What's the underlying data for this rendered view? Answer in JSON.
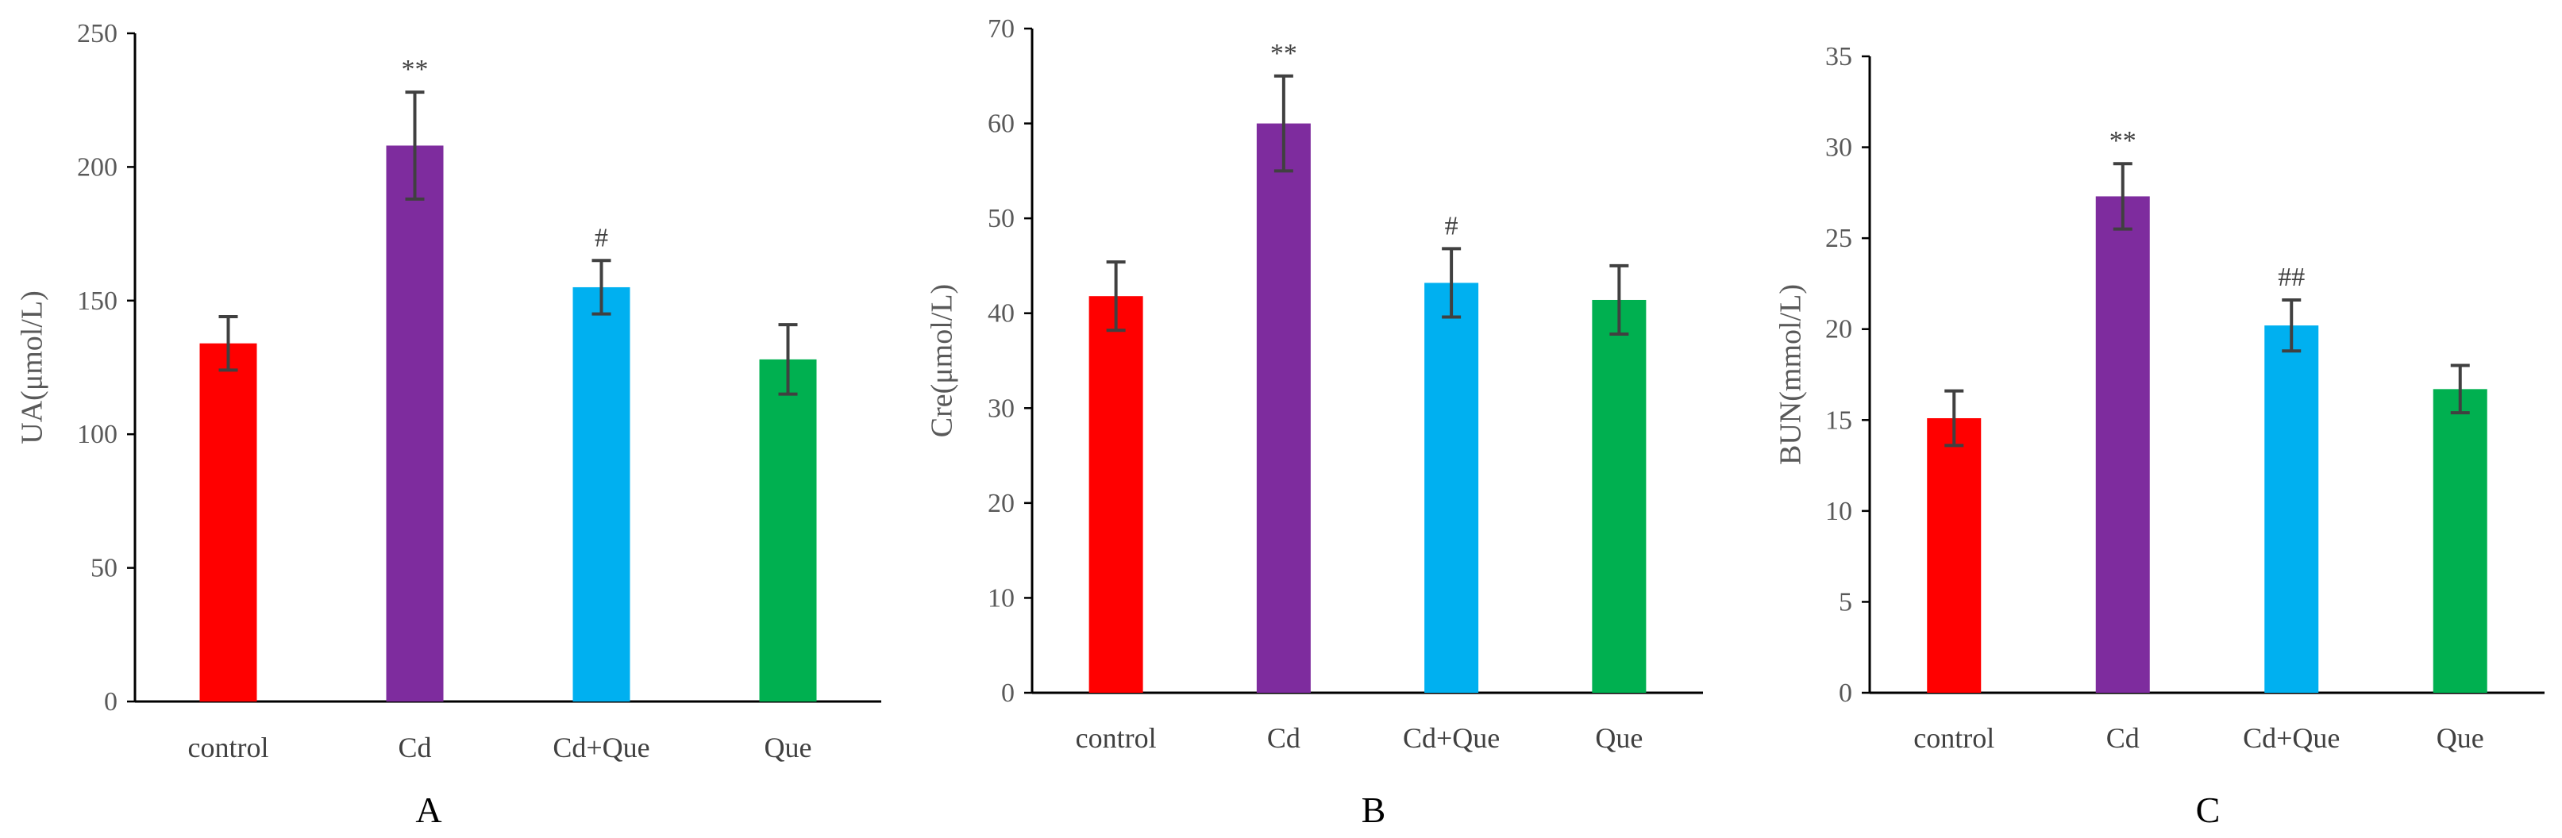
{
  "chart_data": [
    {
      "type": "bar",
      "panel_label": "A",
      "ylabel": "UA(μmol/L)",
      "ylim": [
        0,
        250
      ],
      "yticks": [
        0,
        50,
        100,
        150,
        200,
        250
      ],
      "categories": [
        "control",
        "Cd",
        "Cd+Que",
        "Que"
      ],
      "values": [
        134,
        208,
        155,
        128
      ],
      "errors": [
        10,
        20,
        10,
        13
      ],
      "colors": [
        "#ff0000",
        "#7e2c9e",
        "#00b0f0",
        "#00b050"
      ],
      "annotations": [
        "",
        "**",
        "#",
        ""
      ]
    },
    {
      "type": "bar",
      "panel_label": "B",
      "ylabel": "Cre(μmol/L)",
      "ylim": [
        0,
        70
      ],
      "yticks": [
        0,
        10,
        20,
        30,
        40,
        50,
        60,
        70
      ],
      "categories": [
        "control",
        "Cd",
        "Cd+Que",
        "Que"
      ],
      "values": [
        41.8,
        60,
        43.2,
        41.4
      ],
      "errors": [
        3.6,
        5,
        3.6,
        3.6
      ],
      "colors": [
        "#ff0000",
        "#7e2c9e",
        "#00b0f0",
        "#00b050"
      ],
      "annotations": [
        "",
        "**",
        "#",
        ""
      ]
    },
    {
      "type": "bar",
      "panel_label": "C",
      "ylabel": "BUN(mmol/L)",
      "ylim": [
        0,
        35
      ],
      "yticks": [
        0,
        5,
        10,
        15,
        20,
        25,
        30,
        35
      ],
      "categories": [
        "control",
        "Cd",
        "Cd+Que",
        "Que"
      ],
      "values": [
        15.1,
        27.3,
        20.2,
        16.7
      ],
      "errors": [
        1.5,
        1.8,
        1.4,
        1.3
      ],
      "colors": [
        "#ff0000",
        "#7e2c9e",
        "#00b0f0",
        "#00b050"
      ],
      "annotations": [
        "",
        "**",
        "##",
        ""
      ]
    }
  ]
}
